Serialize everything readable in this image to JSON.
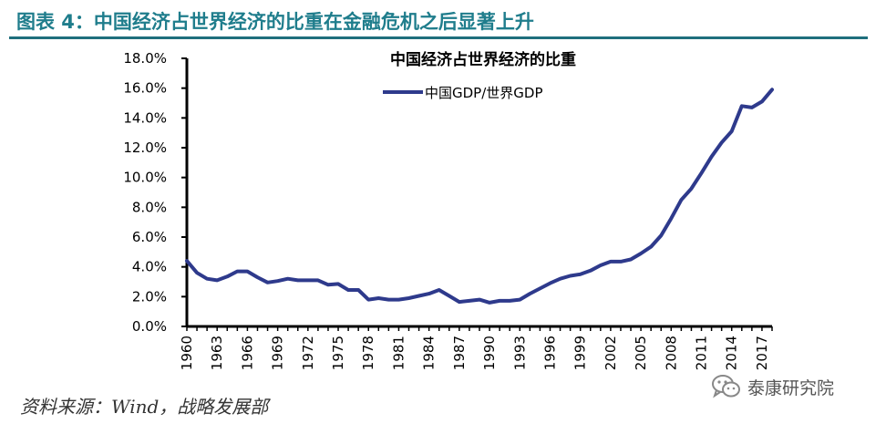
{
  "header": {
    "figure_title": "图表 4：中国经济占世界经济的比重在金融危机之后显著上升",
    "accent_color": "#1f7d8c"
  },
  "chart_data": {
    "type": "line",
    "title": "中国经济占世界经济的比重",
    "xlabel": "",
    "ylabel": "",
    "ylim": [
      0,
      18
    ],
    "xlim": [
      1960,
      2018
    ],
    "y_ticks": [
      "0.0%",
      "2.0%",
      "4.0%",
      "6.0%",
      "8.0%",
      "10.0%",
      "12.0%",
      "14.0%",
      "16.0%",
      "18.0%"
    ],
    "x_ticks": [
      "1960",
      "1963",
      "1966",
      "1969",
      "1972",
      "1975",
      "1978",
      "1981",
      "1984",
      "1987",
      "1990",
      "1993",
      "1996",
      "1999",
      "2002",
      "2005",
      "2008",
      "2011",
      "2014",
      "2017"
    ],
    "grid": false,
    "legend_position": "top-center",
    "series": [
      {
        "name": "中国GDP/世界GDP",
        "color": "#2e3a8c",
        "x": [
          1960,
          1961,
          1962,
          1963,
          1964,
          1965,
          1966,
          1967,
          1968,
          1969,
          1970,
          1971,
          1972,
          1973,
          1974,
          1975,
          1976,
          1977,
          1978,
          1979,
          1980,
          1981,
          1982,
          1983,
          1984,
          1985,
          1986,
          1987,
          1988,
          1989,
          1990,
          1991,
          1992,
          1993,
          1994,
          1995,
          1996,
          1997,
          1998,
          1999,
          2000,
          2001,
          2002,
          2003,
          2004,
          2005,
          2006,
          2007,
          2008,
          2009,
          2010,
          2011,
          2012,
          2013,
          2014,
          2015,
          2016,
          2017,
          2018
        ],
        "values": [
          4.4,
          3.6,
          3.2,
          3.1,
          3.35,
          3.7,
          3.7,
          3.3,
          2.95,
          3.05,
          3.2,
          3.1,
          3.1,
          3.1,
          2.8,
          2.85,
          2.45,
          2.45,
          1.8,
          1.9,
          1.8,
          1.8,
          1.9,
          2.05,
          2.2,
          2.45,
          2.05,
          1.65,
          1.72,
          1.8,
          1.6,
          1.72,
          1.72,
          1.8,
          2.2,
          2.55,
          2.9,
          3.2,
          3.4,
          3.5,
          3.75,
          4.1,
          4.35,
          4.35,
          4.5,
          4.9,
          5.35,
          6.1,
          7.25,
          8.5,
          9.25,
          10.3,
          11.4,
          12.35,
          13.1,
          14.8,
          14.7,
          15.1,
          15.9
        ]
      }
    ]
  },
  "footer": {
    "source": "资料来源：Wind，战略发展部",
    "watermark_text": "泰康研究院",
    "watermark_icon": "wechat-icon"
  }
}
